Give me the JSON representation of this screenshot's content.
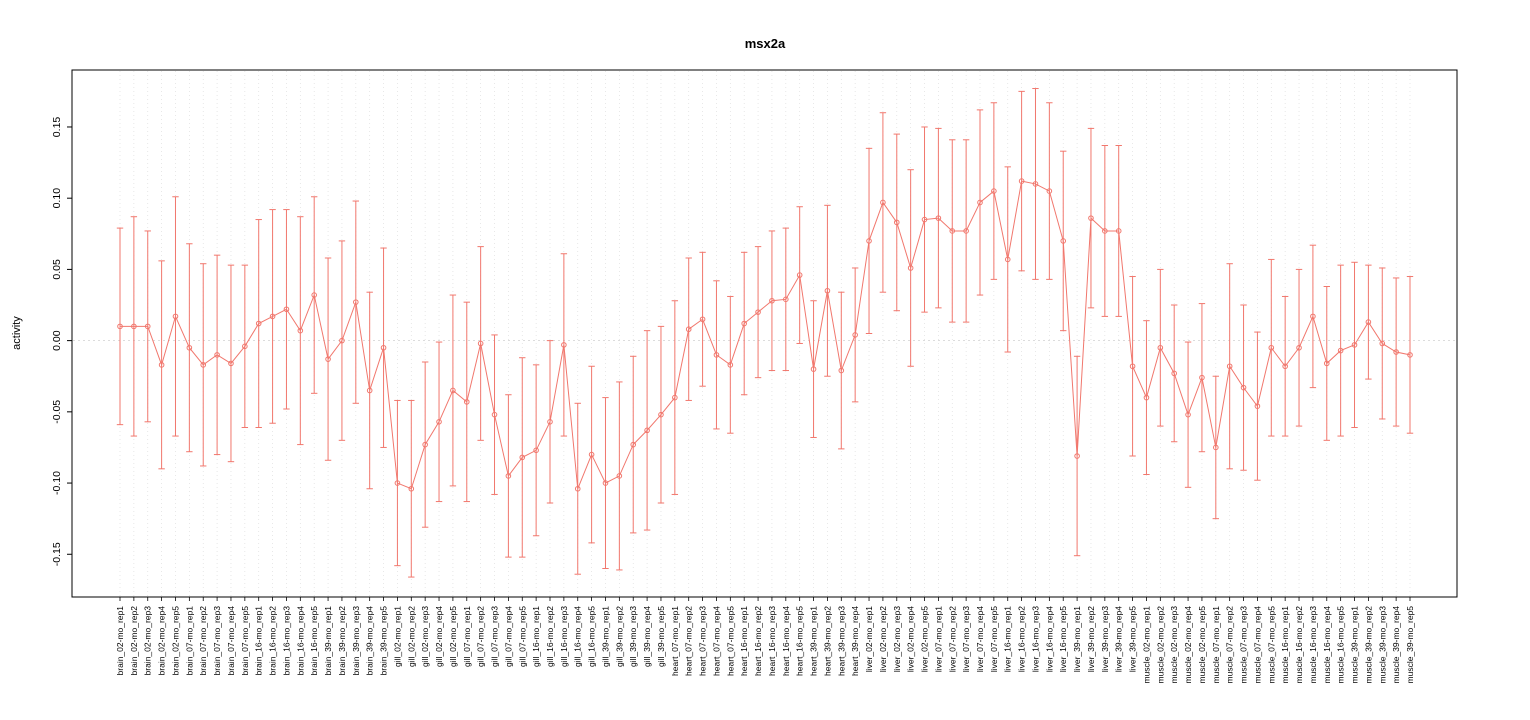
{
  "page": {
    "background": "#ffffff"
  },
  "chart_data": {
    "type": "line",
    "title": "msx2a",
    "xlabel": "",
    "ylabel": "activity",
    "legend": "none",
    "grid": "dotted vertical line per category, dotted horizontal line at y=0",
    "marker": "open-circle",
    "error_bars": true,
    "series_color": "#f1776d",
    "grid_color": "#dedede",
    "zero_line_color": "#d0d0d0",
    "axis_color": "#000000",
    "ylim": [
      -0.18,
      0.19
    ],
    "yticks": [
      -0.15,
      -0.1,
      -0.05,
      0.0,
      0.05,
      0.1,
      0.15
    ],
    "ytick_labels": [
      "-0.15",
      "-0.10",
      "-0.05",
      "0.00",
      "0.05",
      "0.10",
      "0.15"
    ],
    "categories": [
      "brain_02-mo_rep1",
      "brain_02-mo_rep2",
      "brain_02-mo_rep3",
      "brain_02-mo_rep4",
      "brain_02-mo_rep5",
      "brain_07-mo_rep1",
      "brain_07-mo_rep2",
      "brain_07-mo_rep3",
      "brain_07-mo_rep4",
      "brain_07-mo_rep5",
      "brain_16-mo_rep1",
      "brain_16-mo_rep2",
      "brain_16-mo_rep3",
      "brain_16-mo_rep4",
      "brain_16-mo_rep5",
      "brain_39-mo_rep1",
      "brain_39-mo_rep2",
      "brain_39-mo_rep3",
      "brain_39-mo_rep4",
      "brain_39-mo_rep5",
      "gill_02-mo_rep1",
      "gill_02-mo_rep2",
      "gill_02-mo_rep3",
      "gill_02-mo_rep4",
      "gill_02-mo_rep5",
      "gill_07-mo_rep1",
      "gill_07-mo_rep2",
      "gill_07-mo_rep3",
      "gill_07-mo_rep4",
      "gill_07-mo_rep5",
      "gill_16-mo_rep1",
      "gill_16-mo_rep2",
      "gill_16-mo_rep3",
      "gill_16-mo_rep4",
      "gill_16-mo_rep5",
      "gill_39-mo_rep1",
      "gill_39-mo_rep2",
      "gill_39-mo_rep3",
      "gill_39-mo_rep4",
      "gill_39-mo_rep5",
      "heart_07-mo_rep1",
      "heart_07-mo_rep2",
      "heart_07-mo_rep3",
      "heart_07-mo_rep4",
      "heart_07-mo_rep5",
      "heart_16-mo_rep1",
      "heart_16-mo_rep2",
      "heart_16-mo_rep3",
      "heart_16-mo_rep4",
      "heart_16-mo_rep5",
      "heart_39-mo_rep1",
      "heart_39-mo_rep2",
      "heart_39-mo_rep3",
      "heart_39-mo_rep4",
      "liver_02-mo_rep1",
      "liver_02-mo_rep2",
      "liver_02-mo_rep3",
      "liver_02-mo_rep4",
      "liver_02-mo_rep5",
      "liver_07-mo_rep1",
      "liver_07-mo_rep2",
      "liver_07-mo_rep3",
      "liver_07-mo_rep4",
      "liver_07-mo_rep5",
      "liver_16-mo_rep1",
      "liver_16-mo_rep2",
      "liver_16-mo_rep3",
      "liver_16-mo_rep4",
      "liver_16-mo_rep5",
      "liver_39-mo_rep1",
      "liver_39-mo_rep2",
      "liver_39-mo_rep3",
      "liver_39-mo_rep4",
      "liver_39-mo_rep5",
      "muscle_02-mo_rep1",
      "muscle_02-mo_rep2",
      "muscle_02-mo_rep3",
      "muscle_02-mo_rep4",
      "muscle_02-mo_rep5",
      "muscle_07-mo_rep1",
      "muscle_07-mo_rep2",
      "muscle_07-mo_rep3",
      "muscle_07-mo_rep4",
      "muscle_07-mo_rep5",
      "muscle_16-mo_rep1",
      "muscle_16-mo_rep2",
      "muscle_16-mo_rep3",
      "muscle_16-mo_rep4",
      "muscle_16-mo_rep5",
      "muscle_39-mo_rep1",
      "muscle_39-mo_rep2",
      "muscle_39-mo_rep3",
      "muscle_39-mo_rep4",
      "muscle_39-mo_rep5"
    ],
    "values": [
      0.01,
      0.01,
      0.01,
      -0.017,
      0.017,
      -0.005,
      -0.017,
      -0.01,
      -0.016,
      -0.004,
      0.012,
      0.017,
      0.022,
      0.007,
      0.032,
      -0.013,
      0.0,
      0.027,
      -0.035,
      -0.005,
      -0.1,
      -0.104,
      -0.073,
      -0.057,
      -0.035,
      -0.043,
      -0.002,
      -0.052,
      -0.095,
      -0.082,
      -0.077,
      -0.057,
      -0.003,
      -0.104,
      -0.08,
      -0.1,
      -0.095,
      -0.073,
      -0.063,
      -0.052,
      -0.04,
      0.008,
      0.015,
      -0.01,
      -0.017,
      0.012,
      0.02,
      0.028,
      0.029,
      0.046,
      -0.02,
      0.035,
      -0.021,
      0.004,
      0.07,
      0.097,
      0.083,
      0.051,
      0.085,
      0.086,
      0.077,
      0.077,
      0.097,
      0.105,
      0.057,
      0.112,
      0.11,
      0.105,
      0.07,
      -0.081,
      0.086,
      0.077,
      0.077,
      -0.018,
      -0.04,
      -0.005,
      -0.023,
      -0.052,
      -0.026,
      -0.075,
      -0.018,
      -0.033,
      -0.046,
      -0.005,
      -0.018,
      -0.005,
      0.017,
      -0.016,
      -0.007,
      -0.003,
      0.013,
      -0.002,
      -0.008,
      -0.01
    ],
    "errors": [
      0.069,
      0.077,
      0.067,
      0.073,
      0.084,
      0.073,
      0.071,
      0.07,
      0.069,
      0.057,
      0.073,
      0.075,
      0.07,
      0.08,
      0.069,
      0.071,
      0.07,
      0.071,
      0.069,
      0.07,
      0.058,
      0.062,
      0.058,
      0.056,
      0.067,
      0.07,
      0.068,
      0.056,
      0.057,
      0.07,
      0.06,
      0.057,
      0.064,
      0.06,
      0.062,
      0.06,
      0.066,
      0.062,
      0.07,
      0.062,
      0.068,
      0.05,
      0.047,
      0.052,
      0.048,
      0.05,
      0.046,
      0.049,
      0.05,
      0.048,
      0.048,
      0.06,
      0.055,
      0.047,
      0.065,
      0.063,
      0.062,
      0.069,
      0.065,
      0.063,
      0.064,
      0.064,
      0.065,
      0.062,
      0.065,
      0.063,
      0.067,
      0.062,
      0.063,
      0.07,
      0.063,
      0.06,
      0.06,
      0.063,
      0.054,
      0.055,
      0.048,
      0.051,
      0.052,
      0.05,
      0.072,
      0.058,
      0.052,
      0.062,
      0.049,
      0.055,
      0.05,
      0.054,
      0.06,
      0.058,
      0.04,
      0.053,
      0.052,
      0.055
    ]
  }
}
